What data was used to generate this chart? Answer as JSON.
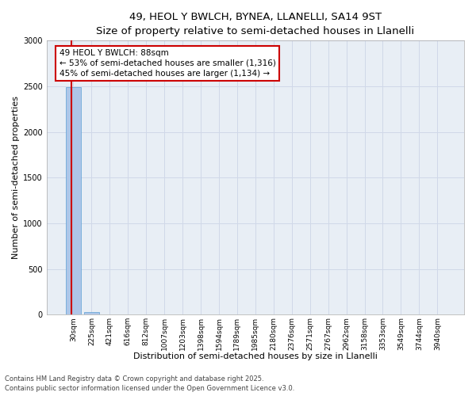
{
  "title_line1": "49, HEOL Y BWLCH, BYNEA, LLANELLI, SA14 9ST",
  "title_line2": "Size of property relative to semi-detached houses in Llanelli",
  "xlabel": "Distribution of semi-detached houses by size in Llanelli",
  "ylabel": "Number of semi-detached properties",
  "categories": [
    "30sqm",
    "225sqm",
    "421sqm",
    "616sqm",
    "812sqm",
    "1007sqm",
    "1203sqm",
    "1398sqm",
    "1594sqm",
    "1789sqm",
    "1985sqm",
    "2180sqm",
    "2376sqm",
    "2571sqm",
    "2767sqm",
    "2962sqm",
    "3158sqm",
    "3353sqm",
    "3549sqm",
    "3744sqm",
    "3940sqm"
  ],
  "values": [
    2490,
    30,
    0,
    0,
    0,
    0,
    0,
    0,
    0,
    0,
    0,
    0,
    0,
    0,
    0,
    0,
    0,
    0,
    0,
    0,
    0
  ],
  "bar_color": "#aec6e8",
  "bar_edge_color": "#5a9fd4",
  "annotation_box_text_line1": "49 HEOL Y BWLCH: 88sqm",
  "annotation_box_text_line2": "← 53% of semi-detached houses are smaller (1,316)",
  "annotation_box_text_line3": "45% of semi-detached houses are larger (1,134) →",
  "annotation_box_color": "#ffffff",
  "annotation_box_edge_color": "#cc0000",
  "vline_color": "#cc0000",
  "ylim": [
    0,
    3000
  ],
  "yticks": [
    0,
    500,
    1000,
    1500,
    2000,
    2500,
    3000
  ],
  "grid_color": "#d0d8e8",
  "background_color": "#e8eef5",
  "footer_line1": "Contains HM Land Registry data © Crown copyright and database right 2025.",
  "footer_line2": "Contains public sector information licensed under the Open Government Licence v3.0.",
  "title_fontsize": 9.5,
  "subtitle_fontsize": 8.5,
  "tick_fontsize": 6.5,
  "ylabel_fontsize": 8,
  "xlabel_fontsize": 8,
  "annotation_fontsize": 7.5,
  "footer_fontsize": 6
}
